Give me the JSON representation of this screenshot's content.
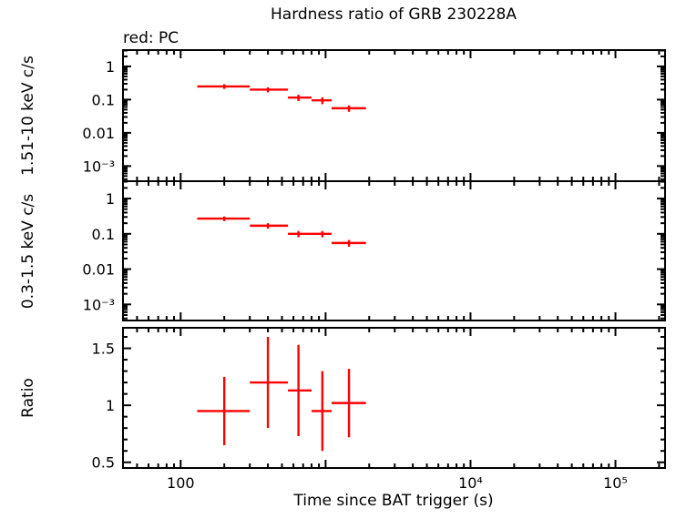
{
  "chart_data": {
    "type": "scatter",
    "title": "Hardness ratio of GRB 230228A",
    "annotation": "red: PC",
    "xlabel": "Time since BAT trigger (s)",
    "x_scale": "log",
    "xlim": [
      40,
      220000
    ],
    "xticks": [
      {
        "v": 100,
        "label": "100"
      },
      {
        "v": 1000,
        "label": ""
      },
      {
        "v": 10000,
        "label": "10⁴"
      },
      {
        "v": 100000,
        "label": "10⁵"
      }
    ],
    "grid": false,
    "data_color": "#ff0000",
    "axis_color": "#000000",
    "panels": [
      {
        "name": "hard-band",
        "ylabel": "1.51-10 keV c/s",
        "y_scale": "log",
        "ylim": [
          0.00035,
          3.1
        ],
        "yticks": [
          {
            "v": 1,
            "label": "1"
          },
          {
            "v": 0.1,
            "label": "0.1"
          },
          {
            "v": 0.01,
            "label": "0.01"
          },
          {
            "v": 0.001,
            "label": "10⁻³"
          }
        ],
        "points": [
          {
            "t": 200,
            "tlo": 130,
            "thi": 300,
            "y": 0.25,
            "yerr": 0.04
          },
          {
            "t": 400,
            "tlo": 300,
            "thi": 550,
            "y": 0.2,
            "yerr": 0.035
          },
          {
            "t": 650,
            "tlo": 550,
            "thi": 800,
            "y": 0.115,
            "yerr": 0.025
          },
          {
            "t": 950,
            "tlo": 800,
            "thi": 1100,
            "y": 0.095,
            "yerr": 0.022
          },
          {
            "t": 1450,
            "tlo": 1100,
            "thi": 1900,
            "y": 0.055,
            "yerr": 0.012
          }
        ]
      },
      {
        "name": "soft-band",
        "ylabel": "0.3-1.5 keV c/s",
        "y_scale": "log",
        "ylim": [
          0.00035,
          3.1
        ],
        "yticks": [
          {
            "v": 1,
            "label": "1"
          },
          {
            "v": 0.1,
            "label": "0.1"
          },
          {
            "v": 0.01,
            "label": "0.01"
          },
          {
            "v": 0.001,
            "label": "10⁻³"
          }
        ],
        "points": [
          {
            "t": 200,
            "tlo": 130,
            "thi": 300,
            "y": 0.27,
            "yerr": 0.04
          },
          {
            "t": 400,
            "tlo": 300,
            "thi": 550,
            "y": 0.17,
            "yerr": 0.03
          },
          {
            "t": 650,
            "tlo": 550,
            "thi": 800,
            "y": 0.1,
            "yerr": 0.02
          },
          {
            "t": 950,
            "tlo": 800,
            "thi": 1100,
            "y": 0.1,
            "yerr": 0.02
          },
          {
            "t": 1450,
            "tlo": 1100,
            "thi": 1900,
            "y": 0.055,
            "yerr": 0.012
          }
        ]
      },
      {
        "name": "ratio",
        "ylabel": "Ratio",
        "y_scale": "linear",
        "ylim": [
          0.45,
          1.68
        ],
        "yticks": [
          {
            "v": 0.5,
            "label": "0.5"
          },
          {
            "v": 1,
            "label": "1"
          },
          {
            "v": 1.5,
            "label": "1.5"
          }
        ],
        "points": [
          {
            "t": 200,
            "tlo": 130,
            "thi": 300,
            "y": 0.95,
            "yerr": 0.3
          },
          {
            "t": 400,
            "tlo": 300,
            "thi": 550,
            "y": 1.2,
            "yerr": 0.4
          },
          {
            "t": 650,
            "tlo": 550,
            "thi": 800,
            "y": 1.13,
            "yerr": 0.4
          },
          {
            "t": 950,
            "tlo": 800,
            "thi": 1100,
            "y": 0.95,
            "yerr": 0.35
          },
          {
            "t": 1450,
            "tlo": 1100,
            "thi": 1900,
            "y": 1.02,
            "yerr": 0.3
          }
        ]
      }
    ]
  }
}
